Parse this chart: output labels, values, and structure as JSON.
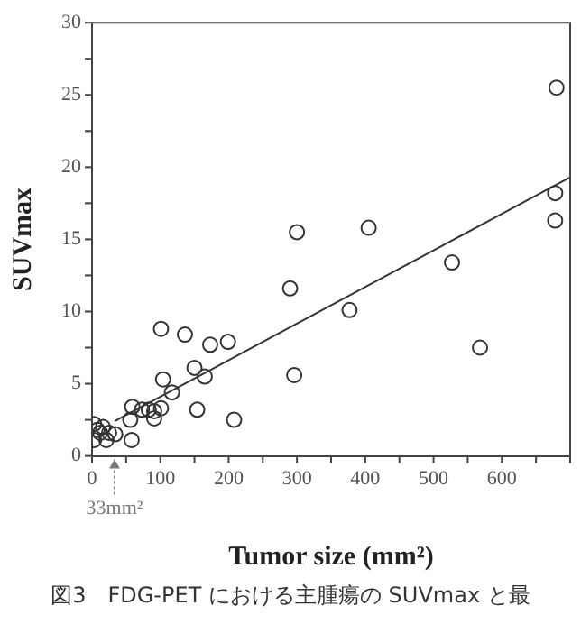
{
  "chart_data": {
    "type": "scatter",
    "xlabel": "Tumor size (mm²)",
    "ylabel": "SUVmax",
    "xlim": [
      0,
      700
    ],
    "ylim": [
      0,
      30
    ],
    "xticks": [
      0,
      {
        "value": 50,
        "label": null
      },
      100,
      {
        "value": 150,
        "label": null
      },
      200,
      {
        "value": 250,
        "label": null
      },
      300,
      {
        "value": 350,
        "label": null
      },
      400,
      {
        "value": 450,
        "label": null
      },
      500,
      {
        "value": 550,
        "label": null
      },
      600,
      {
        "value": 650,
        "label": null
      },
      {
        "value": 700,
        "label": null
      }
    ],
    "yticks": [
      0,
      {
        "value": 2.5,
        "label": null
      },
      5,
      {
        "value": 7.5,
        "label": null
      },
      10,
      {
        "value": 12.5,
        "label": null
      },
      15,
      {
        "value": 17.5,
        "label": null
      },
      20,
      {
        "value": 22.5,
        "label": null
      },
      25,
      {
        "value": 27.5,
        "label": null
      },
      30
    ],
    "marker": "circle",
    "grid": false,
    "legend": false,
    "series": [
      {
        "color": "#333333",
        "x": [
          101,
          136,
          173,
          199,
          290,
          377,
          527,
          568,
          296,
          150,
          165,
          104,
          117,
          154,
          208,
          101,
          91,
          83,
          73,
          59,
          56,
          91,
          58,
          3,
          8,
          16,
          25,
          21,
          34,
          3,
          12,
          300,
          405,
          680,
          678,
          678
        ],
        "values": [
          8.8,
          8.4,
          7.7,
          7.9,
          11.6,
          10.1,
          13.4,
          7.5,
          5.6,
          6.1,
          5.5,
          5.3,
          4.4,
          3.2,
          2.5,
          3.3,
          3.1,
          3.2,
          3.2,
          3.4,
          2.5,
          2.6,
          1.1,
          1.1,
          1.8,
          2.0,
          1.6,
          1.1,
          1.5,
          2.2,
          1.6,
          15.5,
          15.8,
          25.5,
          18.2,
          16.3
        ]
      },
      {
        "type": "line",
        "marker": "none",
        "color": "#333333",
        "x": [
          33,
          700
        ],
        "values": [
          2.4,
          19.3
        ]
      }
    ],
    "ref_lines": [
      {
        "axis": "x",
        "value": 33,
        "label": "33mm²",
        "line_style": "dotted",
        "color": "#777777"
      }
    ],
    "annotations": [
      "図3　FDG-PET における主腫瘍の SUVmax と最"
    ]
  }
}
